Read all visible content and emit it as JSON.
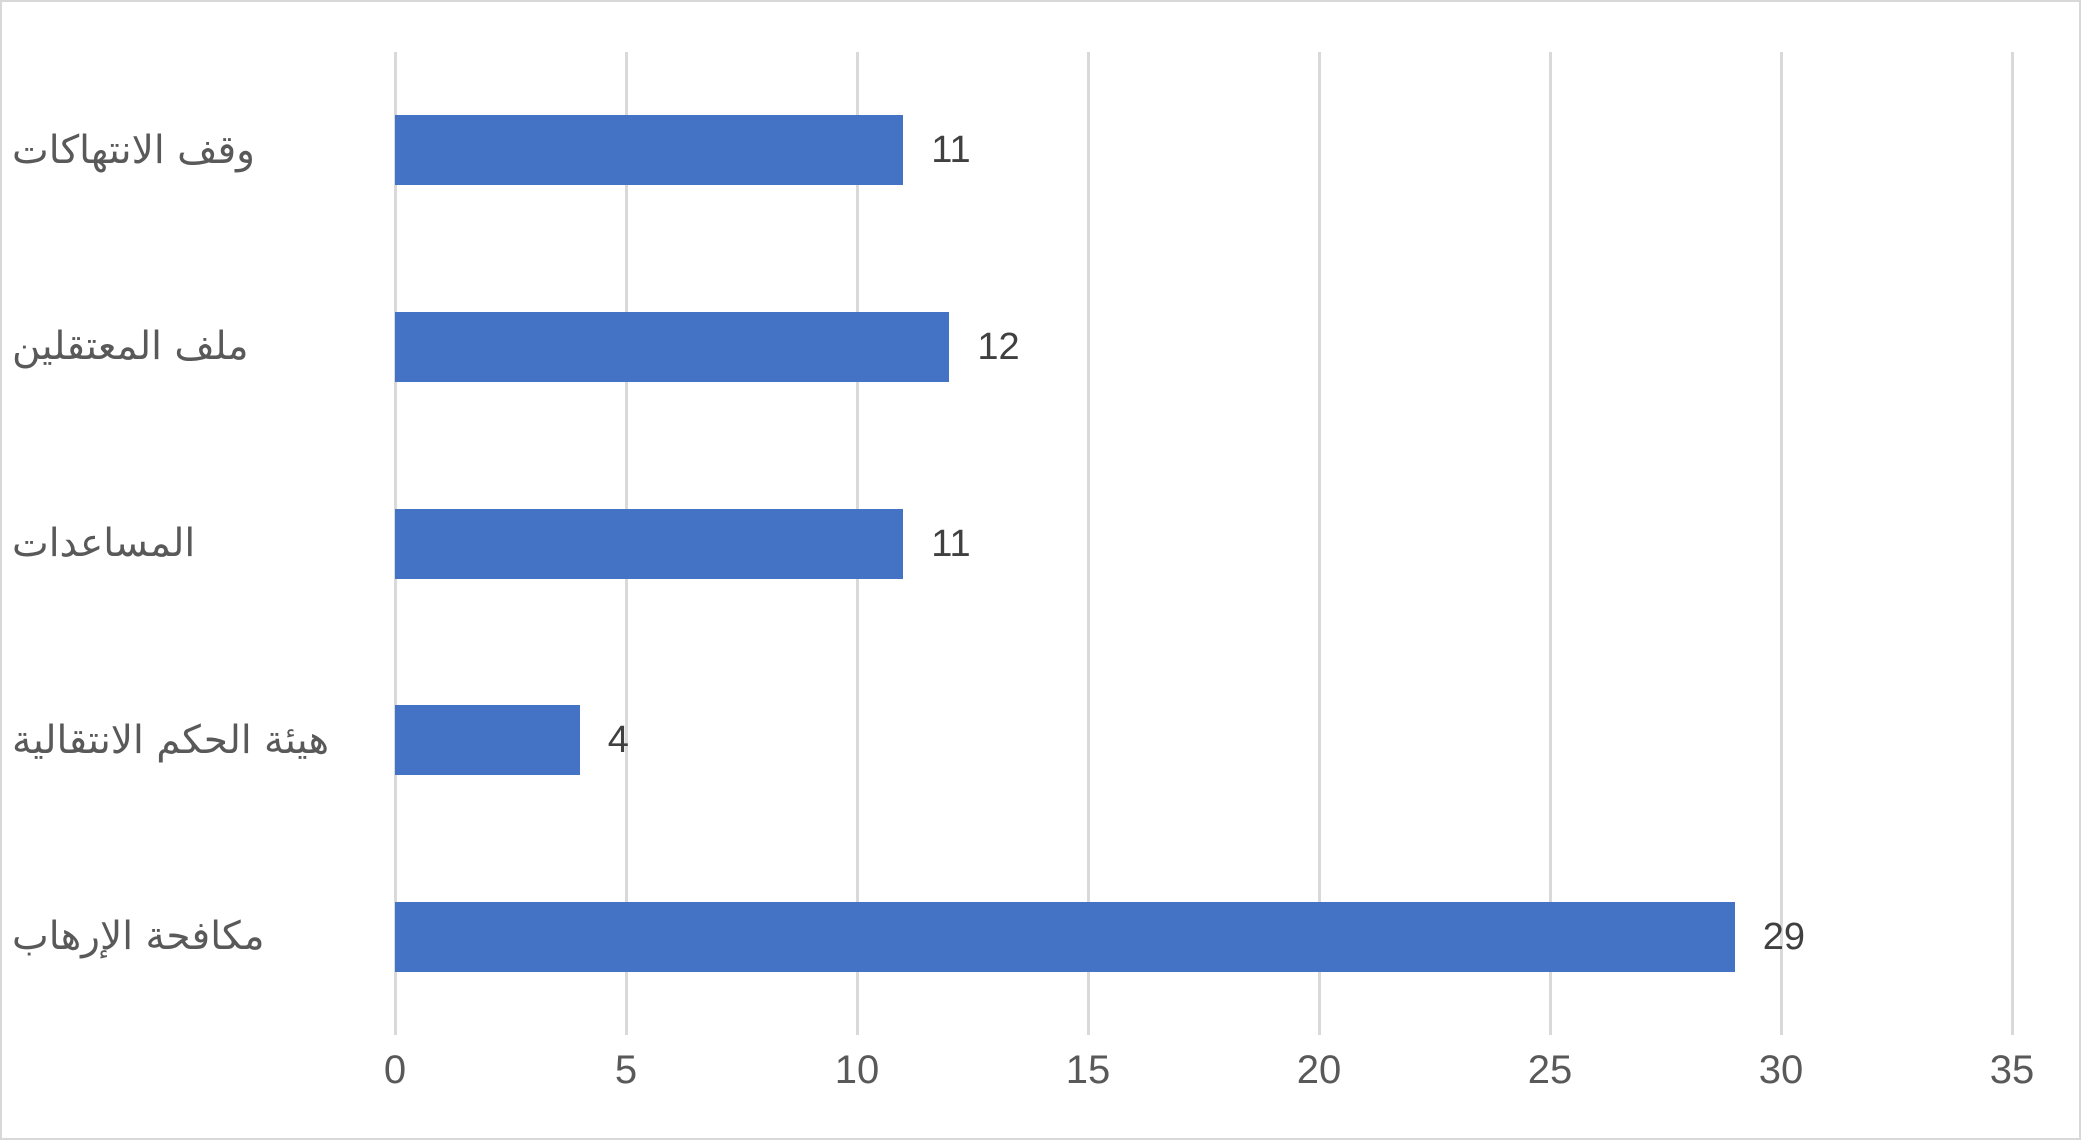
{
  "chart_data": {
    "type": "bar",
    "orientation": "horizontal",
    "title": "",
    "xlabel": "",
    "ylabel": "",
    "categories": [
      "وقف الانتهاكات",
      "ملف المعتقلين",
      "المساعدات",
      "هيئة الحكم الانتقالية",
      "مكافحة الإرهاب"
    ],
    "values": [
      11,
      12,
      11,
      4,
      29
    ],
    "value_labels": [
      "11",
      "12",
      "11",
      "4",
      "29"
    ],
    "xlim": [
      0,
      35
    ],
    "x_ticks": [
      0,
      5,
      10,
      15,
      20,
      25,
      30,
      35
    ],
    "grid": "vertical-gridlines-on",
    "legend": "none",
    "colors": {
      "bar": "#4472C4",
      "gridline": "#D9D9D9",
      "tick_label": "#595959",
      "category_label": "#595959",
      "value_label": "#404040",
      "background": "#FFFFFF",
      "canvas_border": "#D8D8D8"
    }
  }
}
